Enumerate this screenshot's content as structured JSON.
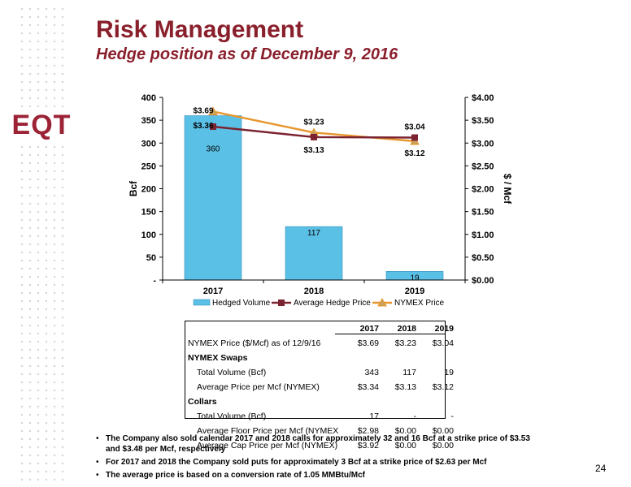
{
  "header": {
    "title": "Risk Management",
    "subtitle": "Hedge position as of December 9, 2016",
    "logo_text": "EQT",
    "brand_color": "#8a1f2c"
  },
  "chart_data": {
    "type": "bar",
    "categories": [
      "2017",
      "2018",
      "2019"
    ],
    "series": [
      {
        "name": "Hedged Volume",
        "kind": "bar",
        "axis": "left",
        "color": "#5bc0e6",
        "values": [
          360,
          117,
          19
        ],
        "labels": [
          "360",
          "117",
          "19"
        ]
      },
      {
        "name": "Average Hedge Price",
        "kind": "line",
        "axis": "right",
        "color": "#7b2331",
        "marker": "square",
        "values": [
          3.36,
          3.13,
          3.12
        ],
        "labels": [
          "$3.36",
          "$3.13",
          "$3.12"
        ]
      },
      {
        "name": "NYMEX Price",
        "kind": "line",
        "axis": "right",
        "color": "#e8962e",
        "marker": "triangle",
        "values": [
          3.69,
          3.23,
          3.04
        ],
        "labels": [
          "$3.69",
          "$3.23",
          "$3.04"
        ]
      }
    ],
    "ylabel": "Bcf",
    "y2label": "$ / Mcf",
    "ylim": [
      0,
      400
    ],
    "y2lim": [
      0,
      4.0
    ],
    "yticks": [
      "-",
      "50",
      "100",
      "150",
      "200",
      "250",
      "300",
      "350",
      "400"
    ],
    "y2ticks": [
      "$0.00",
      "$0.50",
      "$1.00",
      "$1.50",
      "$2.00",
      "$2.50",
      "$3.00",
      "$3.50",
      "$4.00"
    ],
    "grid": false,
    "legend": "bottom"
  },
  "table": {
    "headers": [
      "2017",
      "2018",
      "2019"
    ],
    "rows": [
      {
        "label": "NYMEX Price ($/Mcf) as of 12/9/16",
        "style": "plain",
        "values": [
          "$3.69",
          "$3.23",
          "$3.04"
        ]
      },
      {
        "label": "NYMEX Swaps",
        "style": "section",
        "values": [
          "",
          "",
          ""
        ]
      },
      {
        "label": "Total Volume (Bcf)",
        "style": "indent",
        "values": [
          "343",
          "117",
          "19"
        ]
      },
      {
        "label": "Average Price per Mcf (NYMEX)",
        "style": "indent",
        "values": [
          "$3.34",
          "$3.13",
          "$3.12"
        ]
      },
      {
        "label": "Collars",
        "style": "section",
        "values": [
          "",
          "",
          ""
        ]
      },
      {
        "label": "Total Volume (Bcf)",
        "style": "indent",
        "values": [
          "17",
          "-",
          "-"
        ]
      },
      {
        "label": "Average Floor Price per Mcf (NYMEX",
        "style": "indent",
        "values": [
          "$2.98",
          "$0.00",
          "$0.00"
        ]
      },
      {
        "label": "Average Cap Price per Mcf (NYMEX)",
        "style": "indent",
        "values": [
          "$3.92",
          "$0.00",
          "$0.00"
        ]
      }
    ]
  },
  "notes": [
    "The Company also sold calendar 2017 and 2018 calls for approximately 32 and 16 Bcf at a strike price of $3.53 and $3.48 per Mcf, respectively",
    "For 2017 and 2018 the Company sold puts for approximately 3 Bcf at a strike price of $2.63 per Mcf",
    "The average price is based on a conversion rate of 1.05 MMBtu/Mcf"
  ],
  "page_number": "24"
}
